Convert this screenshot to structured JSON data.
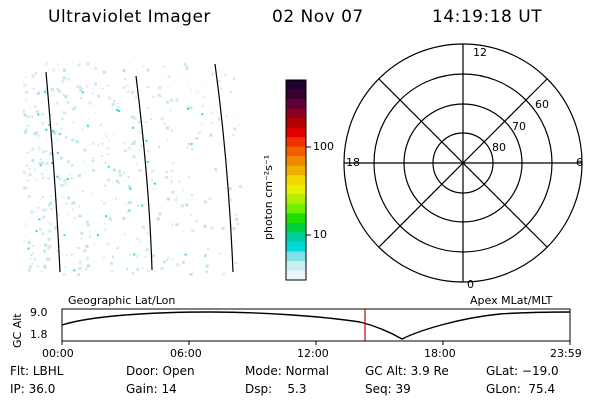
{
  "header": {
    "title": "Ultraviolet Imager",
    "date": "02 Nov 07",
    "time": "14:19:18 UT"
  },
  "colorbar": {
    "unit_label": "photon cm⁻²s⁻¹",
    "tick_labels": [
      "100",
      "10"
    ],
    "colors_top_to_bottom": [
      "#20002f",
      "#3a0030",
      "#60003a",
      "#8a0020",
      "#b40000",
      "#e00000",
      "#f03000",
      "#f06000",
      "#f08800",
      "#f0b000",
      "#f0d800",
      "#e8f000",
      "#b0f000",
      "#70f000",
      "#20e000",
      "#00d040",
      "#00d0a0",
      "#00d8d8",
      "#80e0e8",
      "#c8eef0",
      "#e8f6f8"
    ]
  },
  "polar_plot": {
    "clock_labels": {
      "top": "12",
      "right": "6",
      "bottom": "0",
      "left": "18"
    },
    "lat_labels": [
      "60",
      "70",
      "80"
    ]
  },
  "timeline": {
    "left_label": "Geographic Lat/Lon",
    "right_label": "Apex MLat/MLT",
    "axis_title": "GC Alt",
    "y_ticks": [
      "9.0",
      "1.8"
    ],
    "x_ticks": [
      "00:00",
      "06:00",
      "12:00",
      "18:00",
      "23:59"
    ],
    "marker_color": "#cc0000"
  },
  "info": {
    "row1": [
      {
        "label": "Flt:",
        "value": "LBHL"
      },
      {
        "label": "Door:",
        "value": "Open"
      },
      {
        "label": "Mode:",
        "value": "Normal"
      },
      {
        "label": "GC Alt:",
        "value": "3.9 Re"
      },
      {
        "label": "GLat:",
        "value": "−19.0"
      }
    ],
    "row2": [
      {
        "label": "IP:",
        "value": "36.0"
      },
      {
        "label": "Gain:",
        "value": "14"
      },
      {
        "label": "Dsp:",
        "value": "5.3"
      },
      {
        "label": "Seq:",
        "value": "39"
      },
      {
        "label": "GLon:",
        "value": "75.4"
      }
    ]
  }
}
